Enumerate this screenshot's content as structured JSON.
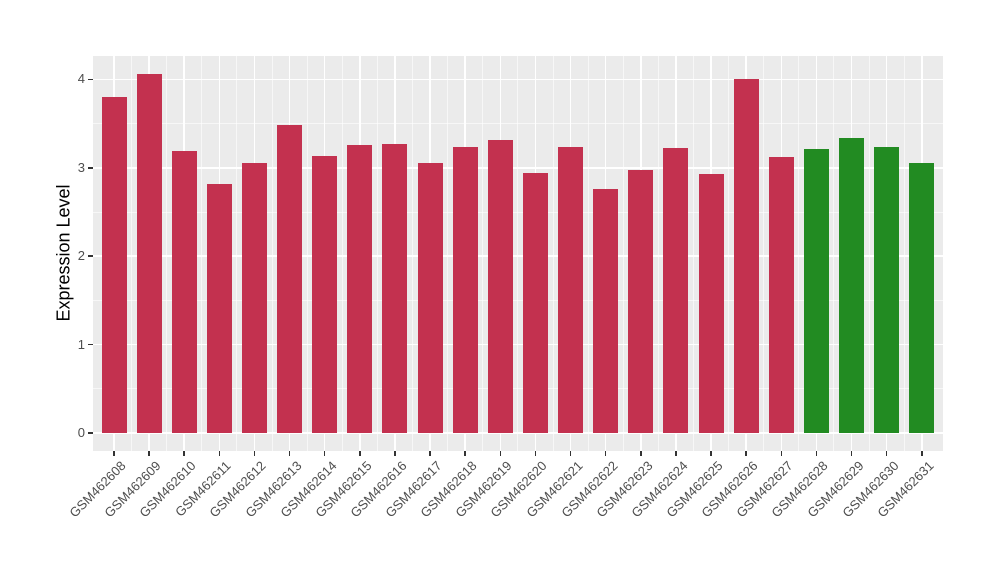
{
  "chart_data": {
    "type": "bar",
    "title": "",
    "xlabel": "",
    "ylabel": "Expression Level",
    "categories": [
      "GSM462608",
      "GSM462609",
      "GSM462610",
      "GSM462611",
      "GSM462612",
      "GSM462613",
      "GSM462614",
      "GSM462615",
      "GSM462616",
      "GSM462617",
      "GSM462618",
      "GSM462619",
      "GSM462620",
      "GSM462621",
      "GSM462622",
      "GSM462623",
      "GSM462624",
      "GSM462625",
      "GSM462626",
      "GSM462627",
      "GSM462628",
      "GSM462629",
      "GSM462630",
      "GSM462631"
    ],
    "values": [
      3.8,
      4.06,
      3.19,
      2.82,
      3.05,
      3.48,
      3.13,
      3.26,
      3.27,
      3.06,
      3.24,
      3.32,
      2.94,
      3.24,
      2.76,
      2.97,
      3.22,
      2.93,
      4.01,
      3.12,
      3.21,
      3.34,
      3.24,
      3.06
    ],
    "bar_colors": [
      "#C3314F",
      "#C3314F",
      "#C3314F",
      "#C3314F",
      "#C3314F",
      "#C3314F",
      "#C3314F",
      "#C3314F",
      "#C3314F",
      "#C3314F",
      "#C3314F",
      "#C3314F",
      "#C3314F",
      "#C3314F",
      "#C3314F",
      "#C3314F",
      "#C3314F",
      "#C3314F",
      "#C3314F",
      "#C3314F",
      "#228B22",
      "#228B22",
      "#228B22",
      "#228B22"
    ],
    "y_ticks": [
      0,
      1,
      2,
      3,
      4
    ],
    "ylim": [
      -0.2,
      4.27
    ],
    "x_tick_rotation_deg": 45,
    "grid": {
      "major": true,
      "minor": true,
      "gridline_color": "#FFFFFF"
    },
    "panel_background": "#EBEBEB",
    "legend_position": "none"
  },
  "colors": {
    "bar_red": "#C3314F",
    "bar_green": "#228B22",
    "panel_bg": "#EBEBEB",
    "gridline": "#FFFFFF",
    "axis_text": "#4D4D4D",
    "tick_mark": "#333333",
    "axis_title": "#000000"
  }
}
